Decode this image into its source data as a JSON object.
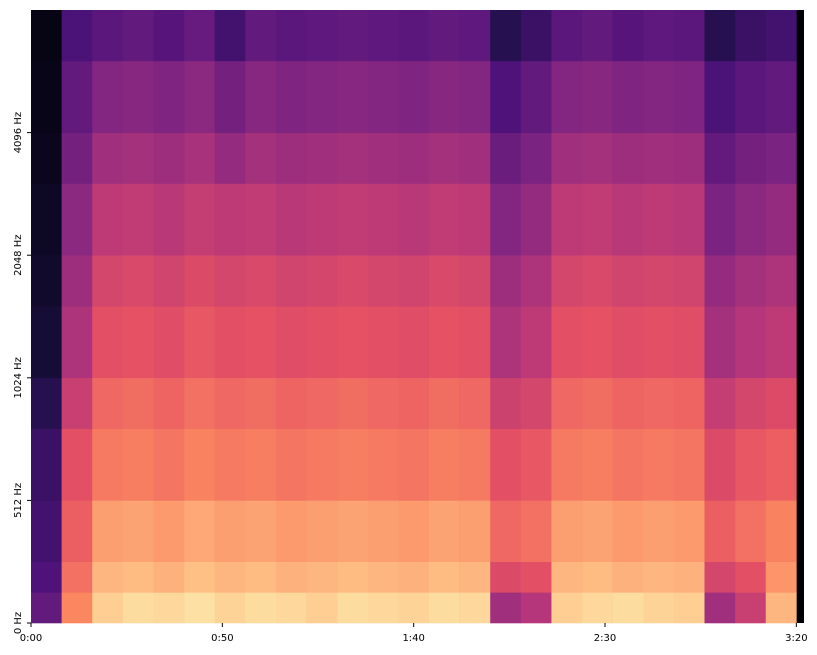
{
  "chart_data": {
    "type": "spectrogram",
    "colormap": "magma",
    "yscale": "symlog",
    "linthresh": 512,
    "xlim": [
      0,
      202
    ],
    "ylim": [
      0,
      8192
    ],
    "xticks": [
      {
        "value": 0,
        "label": "0:00"
      },
      {
        "value": 50,
        "label": "0:50"
      },
      {
        "value": 100,
        "label": "1:40"
      },
      {
        "value": 150,
        "label": "2:30"
      },
      {
        "value": 200,
        "label": "3:20"
      }
    ],
    "yticks": [
      {
        "value": 0,
        "label": "0 Hz"
      },
      {
        "value": 512,
        "label": "512 Hz"
      },
      {
        "value": 1024,
        "label": "1024 Hz"
      },
      {
        "value": 2048,
        "label": "2048 Hz"
      },
      {
        "value": 4096,
        "label": "4096 Hz"
      }
    ],
    "time_bins": [
      0,
      8,
      16,
      24,
      32,
      40,
      48,
      56,
      64,
      72,
      80,
      88,
      96,
      104,
      112,
      120,
      128,
      136,
      144,
      152,
      160,
      168,
      176,
      184,
      192,
      200
    ],
    "freq_bins": [
      0,
      128,
      256,
      512,
      768,
      1024,
      1536,
      2048,
      3072,
      4096,
      6144,
      8192
    ],
    "z": [
      [
        0.3,
        0.75,
        0.9,
        0.93,
        0.92,
        0.94,
        0.91,
        0.93,
        0.92,
        0.9,
        0.93,
        0.92,
        0.91,
        0.93,
        0.92,
        0.45,
        0.5,
        0.9,
        0.92,
        0.93,
        0.91,
        0.9,
        0.45,
        0.55,
        0.85
      ],
      [
        0.25,
        0.7,
        0.85,
        0.86,
        0.84,
        0.87,
        0.85,
        0.86,
        0.84,
        0.85,
        0.86,
        0.85,
        0.84,
        0.86,
        0.85,
        0.6,
        0.62,
        0.85,
        0.86,
        0.84,
        0.85,
        0.84,
        0.58,
        0.62,
        0.78
      ],
      [
        0.22,
        0.66,
        0.8,
        0.81,
        0.79,
        0.82,
        0.8,
        0.81,
        0.79,
        0.8,
        0.81,
        0.8,
        0.79,
        0.81,
        0.8,
        0.68,
        0.7,
        0.8,
        0.81,
        0.79,
        0.8,
        0.79,
        0.66,
        0.7,
        0.74
      ],
      [
        0.2,
        0.62,
        0.72,
        0.73,
        0.71,
        0.74,
        0.72,
        0.73,
        0.71,
        0.72,
        0.73,
        0.72,
        0.71,
        0.73,
        0.72,
        0.62,
        0.64,
        0.72,
        0.73,
        0.71,
        0.72,
        0.71,
        0.6,
        0.64,
        0.66
      ],
      [
        0.15,
        0.55,
        0.68,
        0.69,
        0.67,
        0.7,
        0.68,
        0.69,
        0.67,
        0.68,
        0.69,
        0.68,
        0.67,
        0.69,
        0.68,
        0.56,
        0.58,
        0.68,
        0.69,
        0.67,
        0.68,
        0.67,
        0.54,
        0.58,
        0.6
      ],
      [
        0.1,
        0.48,
        0.62,
        0.63,
        0.61,
        0.64,
        0.62,
        0.63,
        0.61,
        0.62,
        0.63,
        0.62,
        0.61,
        0.63,
        0.62,
        0.48,
        0.52,
        0.62,
        0.63,
        0.61,
        0.62,
        0.61,
        0.46,
        0.5,
        0.52
      ],
      [
        0.08,
        0.44,
        0.58,
        0.59,
        0.57,
        0.6,
        0.58,
        0.59,
        0.57,
        0.58,
        0.59,
        0.58,
        0.57,
        0.59,
        0.58,
        0.44,
        0.48,
        0.58,
        0.59,
        0.57,
        0.58,
        0.57,
        0.42,
        0.46,
        0.48
      ],
      [
        0.06,
        0.4,
        0.52,
        0.53,
        0.51,
        0.54,
        0.52,
        0.53,
        0.51,
        0.52,
        0.53,
        0.52,
        0.51,
        0.53,
        0.52,
        0.38,
        0.42,
        0.52,
        0.53,
        0.51,
        0.52,
        0.51,
        0.36,
        0.4,
        0.42
      ],
      [
        0.05,
        0.34,
        0.45,
        0.46,
        0.44,
        0.47,
        0.42,
        0.46,
        0.44,
        0.45,
        0.46,
        0.45,
        0.44,
        0.46,
        0.45,
        0.32,
        0.36,
        0.45,
        0.46,
        0.44,
        0.45,
        0.44,
        0.3,
        0.34,
        0.36
      ],
      [
        0.04,
        0.3,
        0.38,
        0.39,
        0.37,
        0.4,
        0.34,
        0.39,
        0.37,
        0.38,
        0.39,
        0.38,
        0.37,
        0.39,
        0.38,
        0.25,
        0.3,
        0.38,
        0.39,
        0.37,
        0.38,
        0.37,
        0.24,
        0.28,
        0.3
      ],
      [
        0.03,
        0.24,
        0.28,
        0.3,
        0.27,
        0.31,
        0.22,
        0.3,
        0.28,
        0.29,
        0.3,
        0.29,
        0.28,
        0.3,
        0.29,
        0.15,
        0.2,
        0.28,
        0.3,
        0.27,
        0.29,
        0.28,
        0.15,
        0.2,
        0.22
      ]
    ]
  }
}
